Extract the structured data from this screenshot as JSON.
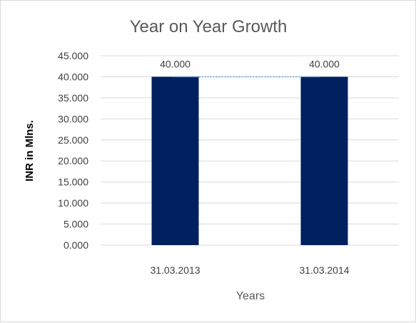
{
  "chart_data": {
    "type": "bar",
    "title": "Year on Year Growth",
    "xlabel": "Years",
    "ylabel": "INR in Mlns.",
    "categories": [
      "31.03.2013",
      "31.03.2014"
    ],
    "values": [
      40,
      40
    ],
    "data_labels": [
      "40.000",
      "40.000"
    ],
    "ylim": [
      0,
      45
    ],
    "yticks": [
      0,
      5,
      10,
      15,
      20,
      25,
      30,
      35,
      40,
      45
    ],
    "ytick_labels": [
      "0.000",
      "5.000",
      "10.000",
      "15.000",
      "20.000",
      "25.000",
      "30.000",
      "35.000",
      "40.000",
      "45.000"
    ],
    "grid": true,
    "legend": "none",
    "colors": {
      "bar": "#002060",
      "gridline": "#d9d9d9",
      "connector": "#5b9bd5"
    }
  }
}
